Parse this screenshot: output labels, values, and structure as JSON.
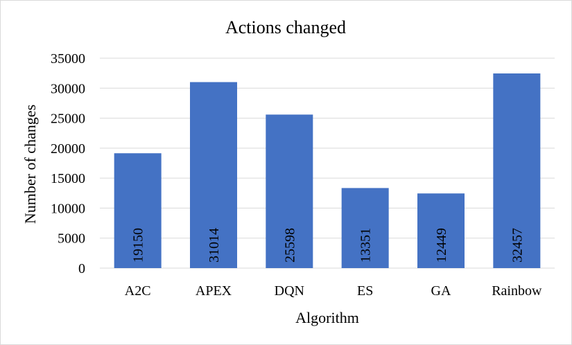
{
  "chart_data": {
    "type": "bar",
    "title": "Actions changed",
    "xlabel": "Algorithm",
    "ylabel": "Number of changes",
    "categories": [
      "A2C",
      "APEX",
      "DQN",
      "ES",
      "GA",
      "Rainbow"
    ],
    "values": [
      19150,
      31014,
      25598,
      13351,
      12449,
      32457
    ],
    "data_labels": [
      "19150",
      "31014",
      "25598",
      "13351",
      "12449",
      "32457"
    ],
    "yticks": [
      0,
      5000,
      10000,
      15000,
      20000,
      25000,
      30000,
      35000
    ],
    "ytick_labels": [
      "0",
      "5000",
      "10000",
      "15000",
      "20000",
      "25000",
      "30000",
      "35000"
    ],
    "ylim": [
      0,
      35000
    ],
    "grid": true,
    "bar_color": "#4472c4",
    "grid_color": "#d9d9d9"
  }
}
